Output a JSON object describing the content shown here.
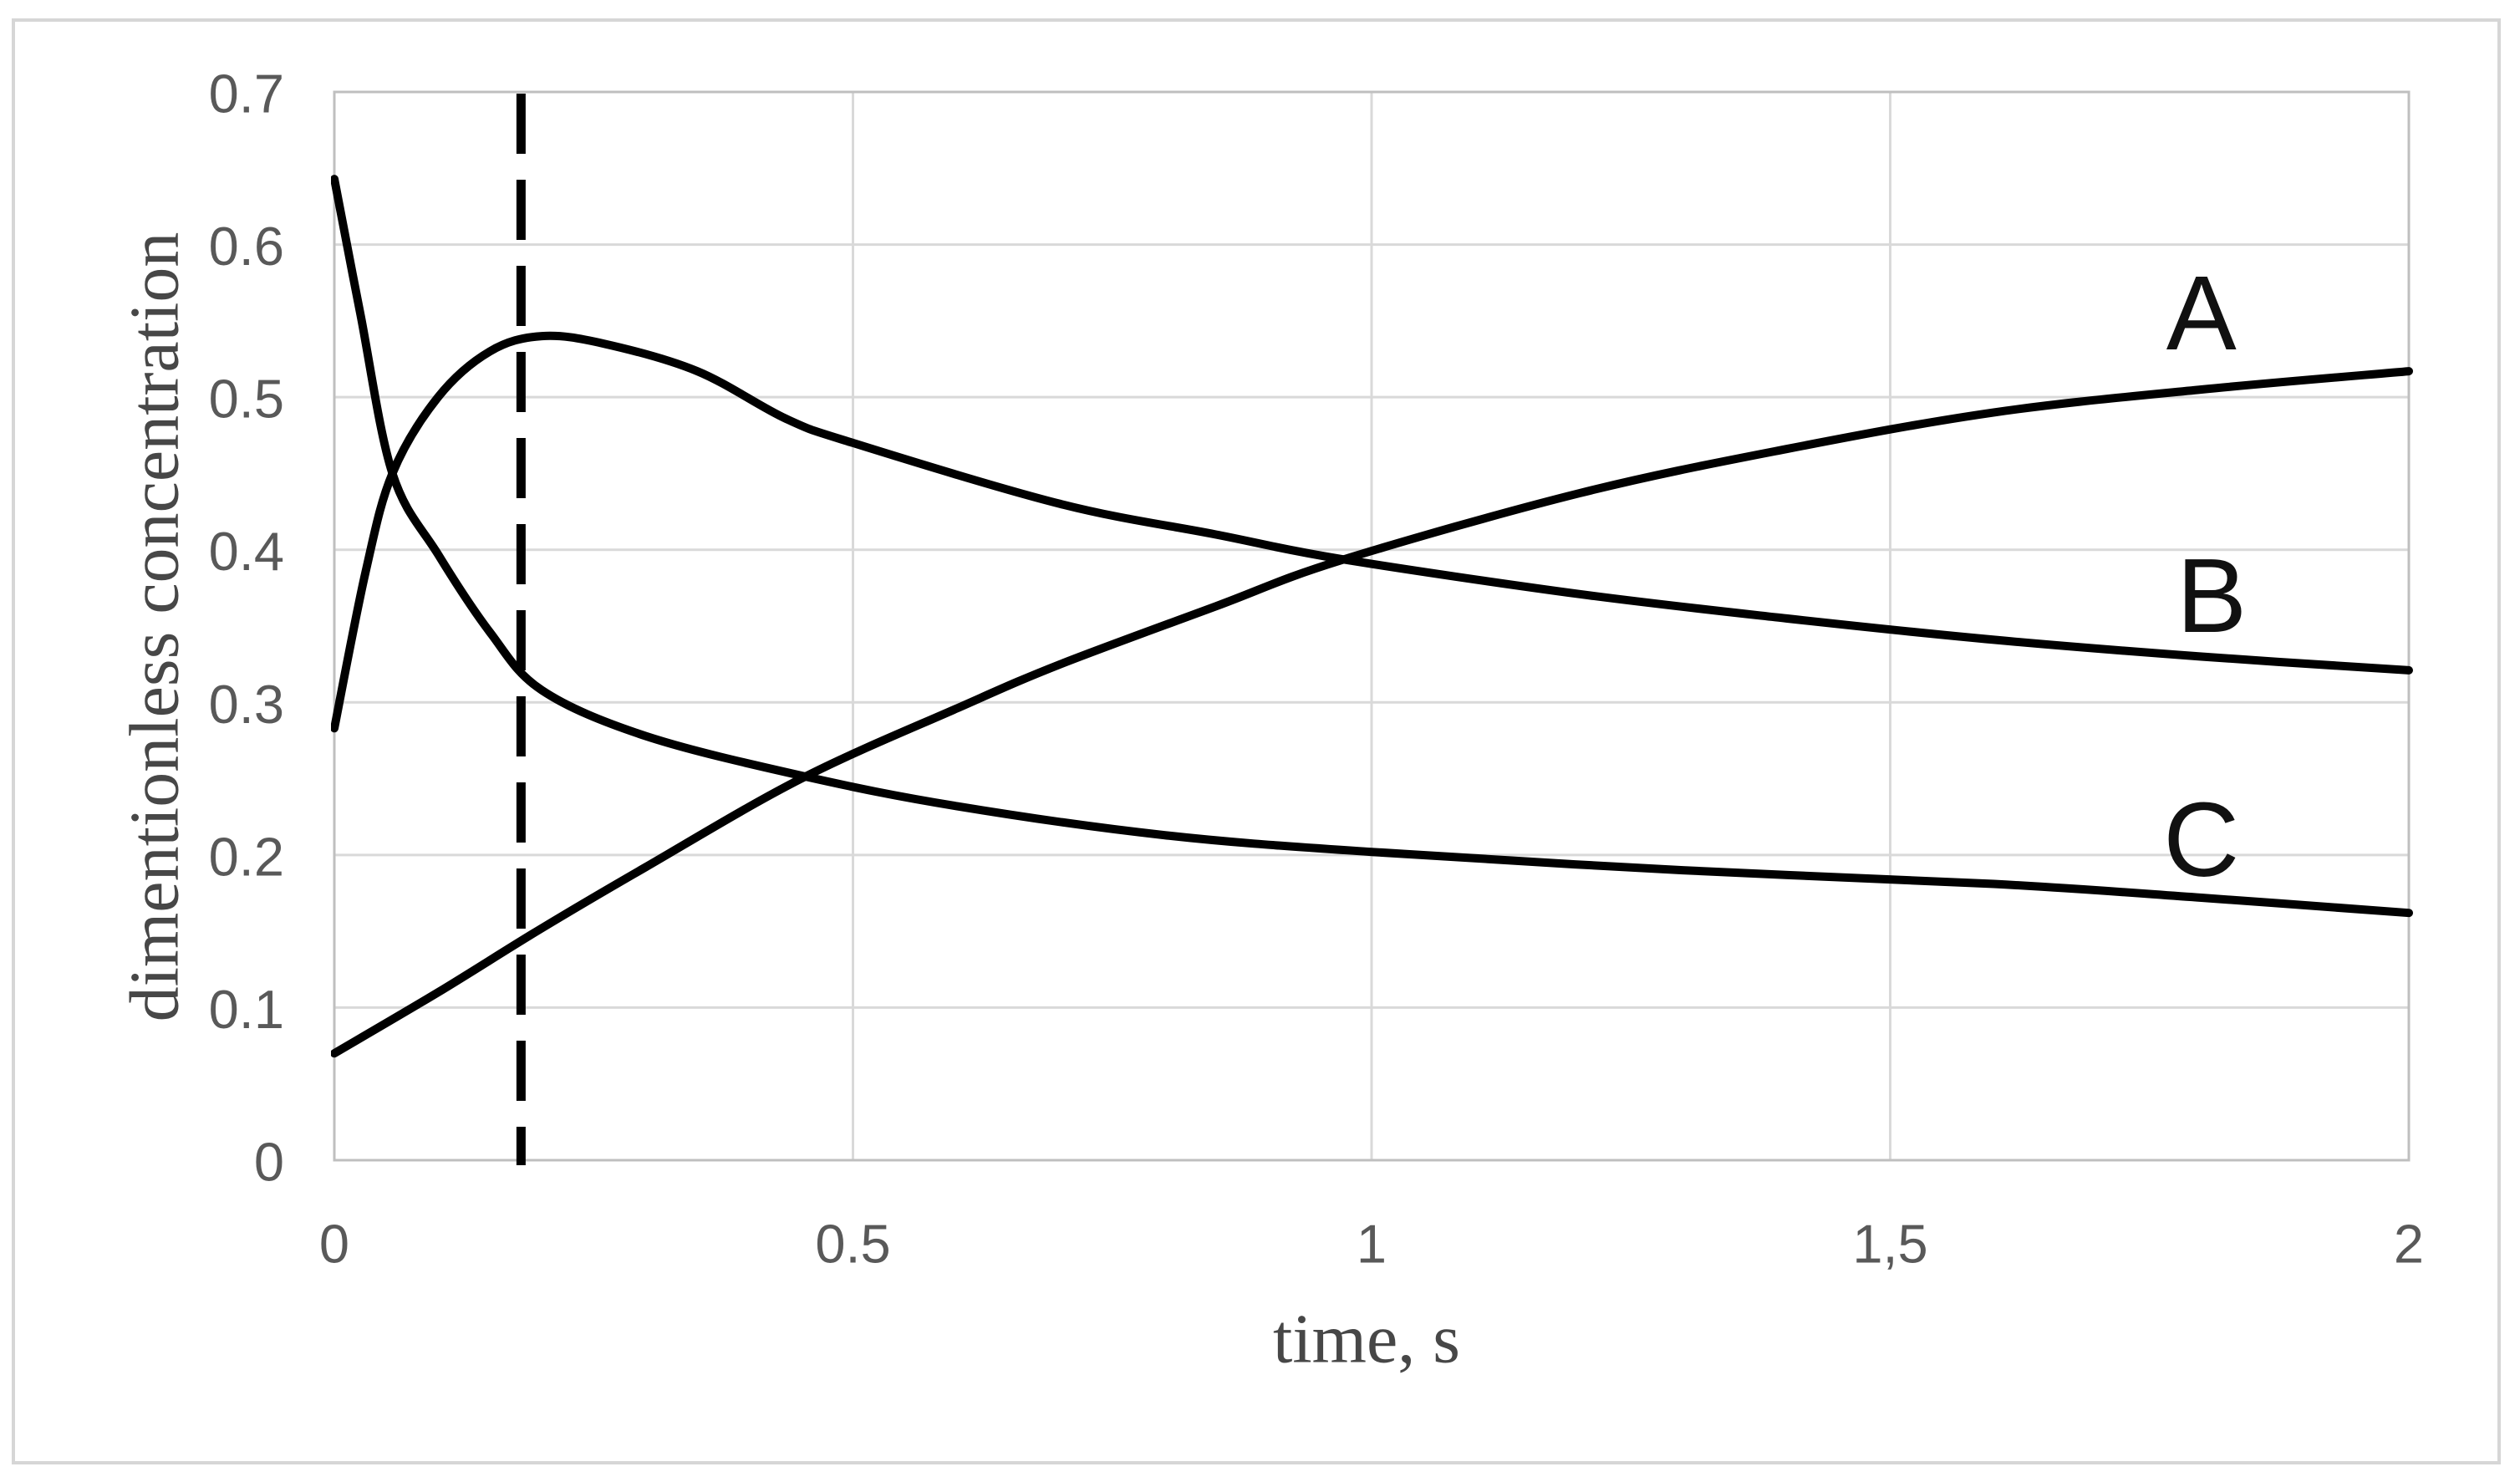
{
  "colors": {
    "curve": "#000000",
    "dashed_line": "#000000",
    "gridline": "#d9d9d9",
    "plot_border": "#bfbfbf",
    "figure_border": "#d6d6d6",
    "tick_text": "#595959",
    "title_text": "#474747",
    "series_label_text": "#111111",
    "background": "#ffffff"
  },
  "chart_data": {
    "type": "line",
    "title": "",
    "xlabel": "time, s",
    "ylabel": "dimentionless concentration",
    "xlim": [
      0,
      2
    ],
    "ylim": [
      0,
      0.7
    ],
    "grid": true,
    "legend_position": "none",
    "x_ticks": [
      {
        "v": 0,
        "label": "0"
      },
      {
        "v": 0.5,
        "label": "0.5"
      },
      {
        "v": 1,
        "label": "1"
      },
      {
        "v": 1.5,
        "label": "1,5"
      },
      {
        "v": 2,
        "label": "2"
      }
    ],
    "y_ticks": [
      {
        "v": 0,
        "label": "0"
      },
      {
        "v": 0.1,
        "label": "0.1"
      },
      {
        "v": 0.2,
        "label": "0.2"
      },
      {
        "v": 0.3,
        "label": "0.3"
      },
      {
        "v": 0.4,
        "label": "0.4"
      },
      {
        "v": 0.5,
        "label": "0.5"
      },
      {
        "v": 0.6,
        "label": "0.6"
      },
      {
        "v": 0.7,
        "label": "0.7"
      }
    ],
    "dashed_vline": {
      "t": 0.18
    },
    "series": [
      {
        "name": "A",
        "label_pos": {
          "t": 1.8,
          "c": 0.555
        },
        "points": [
          [
            0,
            0.07
          ],
          [
            0.1,
            0.11
          ],
          [
            0.2,
            0.152
          ],
          [
            0.3,
            0.192
          ],
          [
            0.45,
            0.25
          ],
          [
            0.6,
            0.296
          ],
          [
            0.7,
            0.325
          ],
          [
            0.85,
            0.363
          ],
          [
            0.97,
            0.393
          ],
          [
            1.2,
            0.437
          ],
          [
            1.4,
            0.466
          ],
          [
            1.6,
            0.49
          ],
          [
            1.8,
            0.505
          ],
          [
            2.0,
            0.517
          ]
        ]
      },
      {
        "name": "B",
        "label_pos": {
          "t": 1.81,
          "c": 0.37
        },
        "points": [
          [
            0,
            0.283
          ],
          [
            0.03,
            0.385
          ],
          [
            0.056,
            0.45
          ],
          [
            0.1,
            0.5
          ],
          [
            0.15,
            0.53
          ],
          [
            0.2,
            0.54
          ],
          [
            0.26,
            0.535
          ],
          [
            0.35,
            0.517
          ],
          [
            0.435,
            0.486
          ],
          [
            0.5,
            0.47
          ],
          [
            0.7,
            0.43
          ],
          [
            0.85,
            0.41
          ],
          [
            0.97,
            0.394
          ],
          [
            1.2,
            0.371
          ],
          [
            1.4,
            0.355
          ],
          [
            1.6,
            0.341
          ],
          [
            1.8,
            0.33
          ],
          [
            2.0,
            0.321
          ]
        ]
      },
      {
        "name": "C",
        "label_pos": {
          "t": 1.8,
          "c": 0.21
        },
        "points": [
          [
            0,
            0.643
          ],
          [
            0.025,
            0.555
          ],
          [
            0.056,
            0.45
          ],
          [
            0.1,
            0.397
          ],
          [
            0.15,
            0.346
          ],
          [
            0.2,
            0.308
          ],
          [
            0.3,
            0.278
          ],
          [
            0.45,
            0.252
          ],
          [
            0.6,
            0.232
          ],
          [
            0.8,
            0.213
          ],
          [
            1.0,
            0.202
          ],
          [
            1.3,
            0.19
          ],
          [
            1.6,
            0.181
          ],
          [
            1.8,
            0.172
          ],
          [
            2.0,
            0.162
          ]
        ]
      }
    ]
  }
}
